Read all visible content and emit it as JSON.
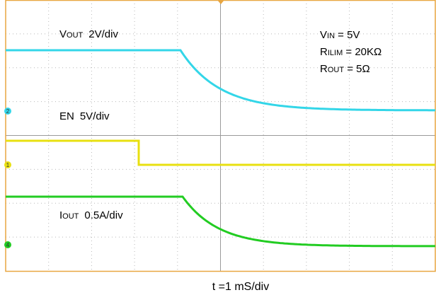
{
  "labels": {
    "vout": {
      "main": "V",
      "sub": "OUT",
      "scale": "2V/div"
    },
    "en": {
      "main": "EN",
      "scale": "5V/div"
    },
    "iout": {
      "main": "I",
      "sub": "OUT",
      "scale": "0.5A/div"
    },
    "vin": {
      "main": "V",
      "sub": "IN",
      "rest": " = 5V"
    },
    "rilim": {
      "main": "R",
      "sub": "ILIM",
      "rest": " = 20KΩ"
    },
    "rout": {
      "main": "R",
      "sub": "OUT",
      "rest": " = 5Ω"
    }
  },
  "channels": [
    "2",
    "1",
    "4"
  ],
  "time_scale": "t =1 mS/div"
}
